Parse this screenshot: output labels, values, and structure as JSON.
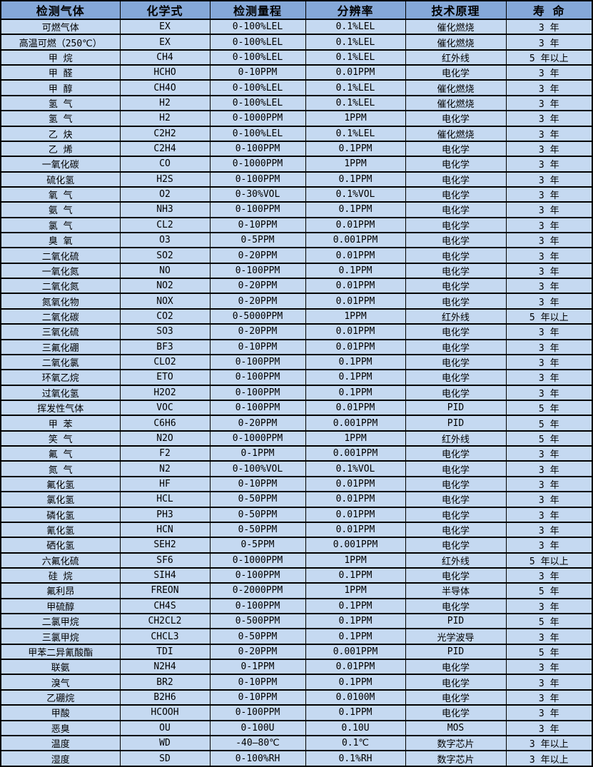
{
  "colors": {
    "header_bg": "#85a8d8",
    "row_bg": "#c5d9f1",
    "border": "#000000"
  },
  "table": {
    "headers": [
      "检测气体",
      "化学式",
      "检测量程",
      "分辨率",
      "技术原理",
      "寿 命"
    ],
    "rows": [
      [
        "可燃气体",
        "EX",
        "0-100%LEL",
        "0.1%LEL",
        "催化燃烧",
        "3 年"
      ],
      [
        "高温可燃（250℃）",
        "EX",
        "0-100%LEL",
        "0.1%LEL",
        "催化燃烧",
        "3 年"
      ],
      [
        "甲 烷",
        "CH4",
        "0-100%LEL",
        "0.1%LEL",
        "红外线",
        "5 年以上"
      ],
      [
        "甲 醛",
        "HCHO",
        "0-10PPM",
        "0.01PPM",
        "电化学",
        "3 年"
      ],
      [
        "甲 醇",
        "CH4O",
        "0-100%LEL",
        "0.1%LEL",
        "催化燃烧",
        "3 年"
      ],
      [
        "氢 气",
        "H2",
        "0-100%LEL",
        "0.1%LEL",
        "催化燃烧",
        "3 年"
      ],
      [
        "氢 气",
        "H2",
        "0-1000PPM",
        "1PPM",
        "电化学",
        "3 年"
      ],
      [
        "乙 炔",
        "C2H2",
        "0-100%LEL",
        "0.1%LEL",
        "催化燃烧",
        "3 年"
      ],
      [
        "乙 烯",
        "C2H4",
        "0-100PPM",
        "0.1PPM",
        "电化学",
        "3 年"
      ],
      [
        "一氧化碳",
        "CO",
        "0-1000PPM",
        "1PPM",
        "电化学",
        "3 年"
      ],
      [
        "硫化氢",
        "H2S",
        "0-100PPM",
        "0.1PPM",
        "电化学",
        "3 年"
      ],
      [
        "氧 气",
        "O2",
        "0-30%VOL",
        "0.1%VOL",
        "电化学",
        "3 年"
      ],
      [
        "氨 气",
        "NH3",
        "0-100PPM",
        "0.1PPM",
        "电化学",
        "3 年"
      ],
      [
        "氯 气",
        "CL2",
        "0-10PPM",
        "0.01PPM",
        "电化学",
        "3 年"
      ],
      [
        "臭 氧",
        "O3",
        "0-5PPM",
        "0.001PPM",
        "电化学",
        "3 年"
      ],
      [
        "二氧化硫",
        "SO2",
        "0-20PPM",
        "0.01PPM",
        "电化学",
        "3 年"
      ],
      [
        "一氧化氮",
        "NO",
        "0-100PPM",
        "0.1PPM",
        "电化学",
        "3 年"
      ],
      [
        "二氧化氮",
        "NO2",
        "0-20PPM",
        "0.01PPM",
        "电化学",
        "3 年"
      ],
      [
        "氮氧化物",
        "NOX",
        "0-20PPM",
        "0.01PPM",
        "电化学",
        "3 年"
      ],
      [
        "二氧化碳",
        "CO2",
        "0-5000PPM",
        "1PPM",
        "红外线",
        "5 年以上"
      ],
      [
        "三氧化硫",
        "SO3",
        "0-20PPM",
        "0.01PPM",
        "电化学",
        "3 年"
      ],
      [
        "三氟化硼",
        "BF3",
        "0-10PPM",
        "0.01PPM",
        "电化学",
        "3 年"
      ],
      [
        "二氧化氯",
        "CLO2",
        "0-100PPM",
        "0.1PPM",
        "电化学",
        "3 年"
      ],
      [
        "环氧乙烷",
        "ETO",
        "0-100PPM",
        "0.1PPM",
        "电化学",
        "3 年"
      ],
      [
        "过氧化氢",
        "H2O2",
        "0-100PPM",
        "0.1PPM",
        "电化学",
        "3 年"
      ],
      [
        "挥发性气体",
        "VOC",
        "0-100PPM",
        "0.01PPM",
        "PID",
        "5 年"
      ],
      [
        "甲 苯",
        "C6H6",
        "0-20PPM",
        "0.001PPM",
        "PID",
        "5 年"
      ],
      [
        "笑 气",
        "N2O",
        "0-1000PPM",
        "1PPM",
        "红外线",
        "5 年"
      ],
      [
        "氟 气",
        "F2",
        "0-1PPM",
        "0.001PPM",
        "电化学",
        "3 年"
      ],
      [
        "氮 气",
        "N2",
        "0-100%VOL",
        "0.1%VOL",
        "电化学",
        "3 年"
      ],
      [
        "氟化氢",
        "HF",
        "0-10PPM",
        "0.01PPM",
        "电化学",
        "3 年"
      ],
      [
        "氯化氢",
        "HCL",
        "0-50PPM",
        "0.01PPM",
        "电化学",
        "3 年"
      ],
      [
        "磷化氢",
        "PH3",
        "0-50PPM",
        "0.01PPM",
        "电化学",
        "3 年"
      ],
      [
        "氰化氢",
        "HCN",
        "0-50PPM",
        "0.01PPM",
        "电化学",
        "3 年"
      ],
      [
        "硒化氢",
        "SEH2",
        "0-5PPM",
        "0.001PPM",
        "电化学",
        "3 年"
      ],
      [
        "六氟化硫",
        "SF6",
        "0-1000PPM",
        "1PPM",
        "红外线",
        "5 年以上"
      ],
      [
        "硅 烷",
        "SIH4",
        "0-100PPM",
        "0.1PPM",
        "电化学",
        "3 年"
      ],
      [
        "氟利昂",
        "FREON",
        "0-2000PPM",
        "1PPM",
        "半导体",
        "5 年"
      ],
      [
        "甲硫醇",
        "CH4S",
        "0-100PPM",
        "0.1PPM",
        "电化学",
        "3 年"
      ],
      [
        "二氯甲烷",
        "CH2CL2",
        "0-500PPM",
        "0.1PPM",
        "PID",
        "5 年"
      ],
      [
        "三氯甲烷",
        "CHCL3",
        "0-50PPM",
        "0.1PPM",
        "光学波导",
        "3 年"
      ],
      [
        "甲苯二异氰酸酯",
        "TDI",
        "0-20PPM",
        "0.001PPM",
        "PID",
        "5 年"
      ],
      [
        "联氨",
        "N2H4",
        "0-1PPM",
        "0.01PPM",
        "电化学",
        "3 年"
      ],
      [
        "溴气",
        "BR2",
        "0-10PPM",
        "0.1PPM",
        "电化学",
        "3 年"
      ],
      [
        "乙硼烷",
        "B2H6",
        "0-10PPM",
        "0.0100M",
        "电化学",
        "3 年"
      ],
      [
        "甲酸",
        "HCOOH",
        "0-100PPM",
        "0.1PPM",
        "电化学",
        "3 年"
      ],
      [
        "恶臭",
        "OU",
        "0-100U",
        "0.10U",
        "MOS",
        "3 年"
      ],
      [
        "温度",
        "WD",
        "-40—80℃",
        "0.1℃",
        "数字芯片",
        "3 年以上"
      ],
      [
        "湿度",
        "SD",
        "0-100%RH",
        "0.1%RH",
        "数字芯片",
        "3 年以上"
      ]
    ]
  },
  "chart_data": {
    "type": "table",
    "title": "",
    "columns": [
      "检测气体",
      "化学式",
      "检测量程",
      "分辨率",
      "技术原理",
      "寿 命"
    ]
  }
}
